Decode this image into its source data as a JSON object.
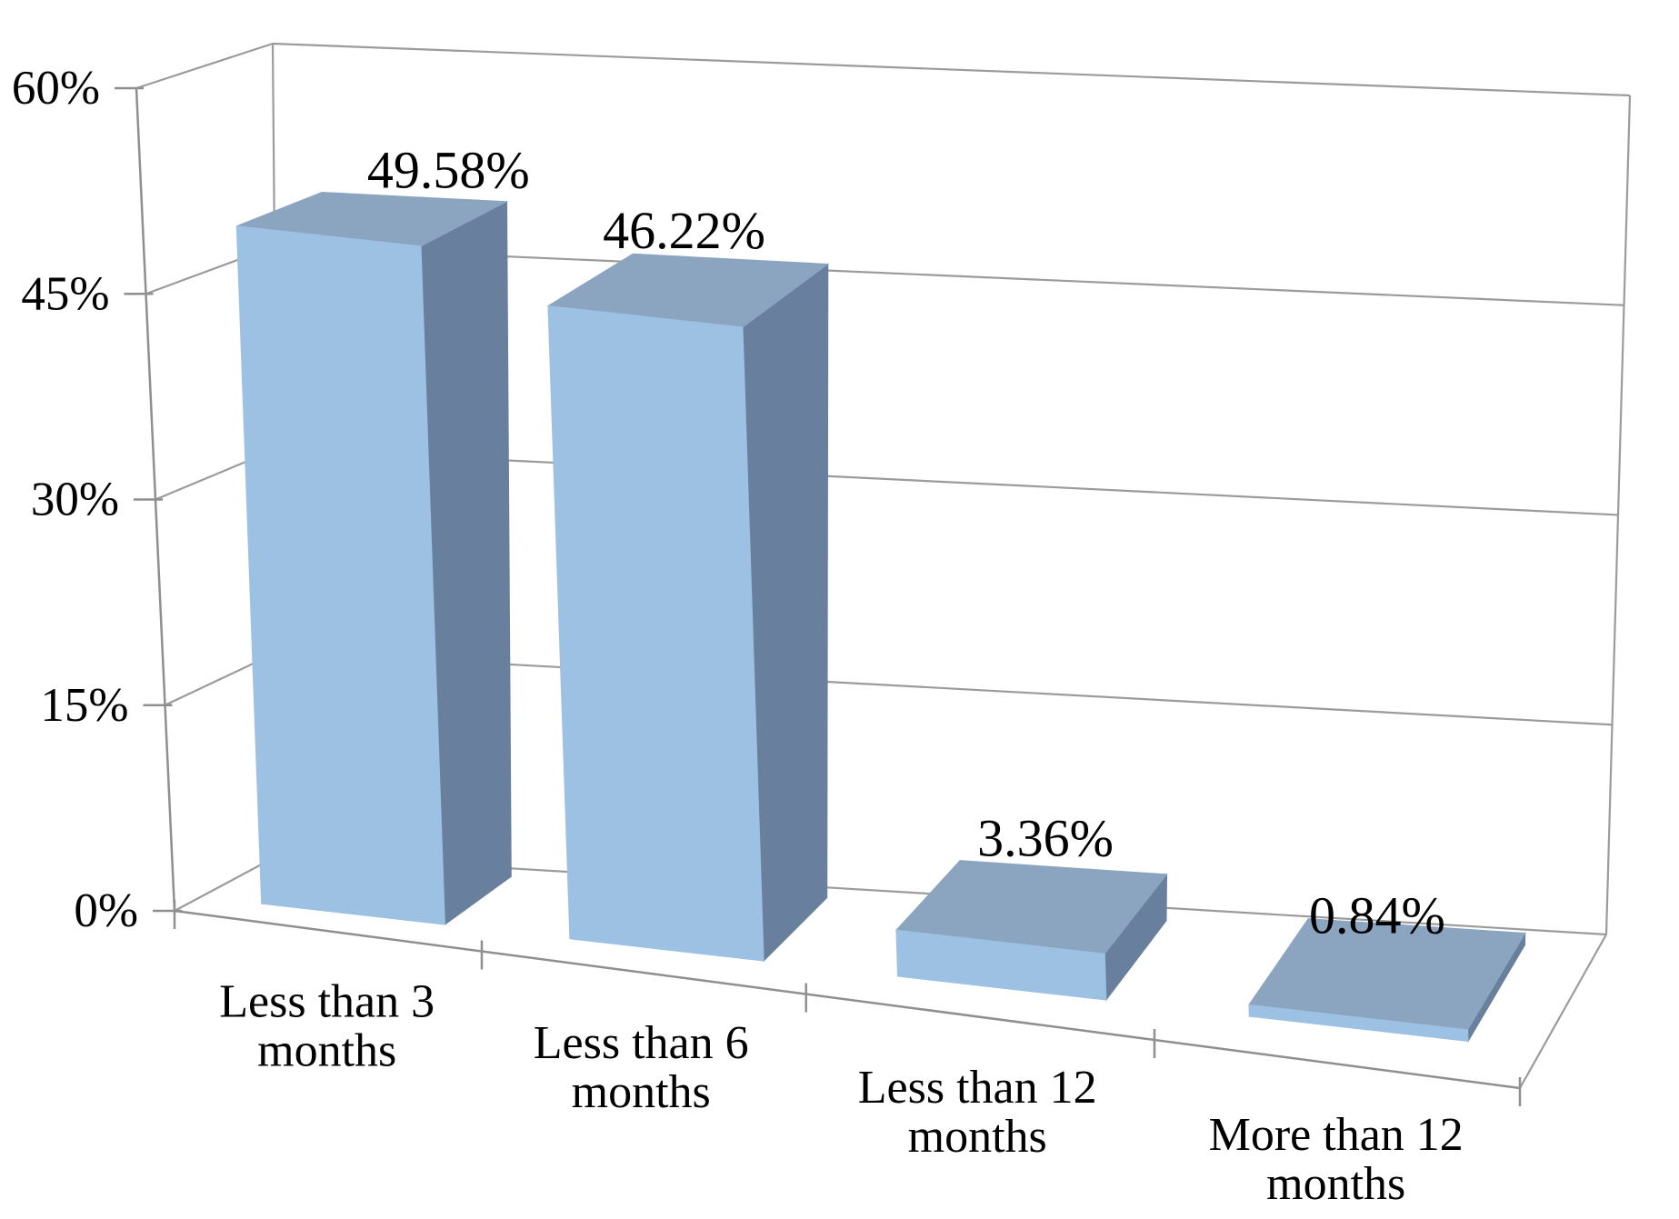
{
  "figure": {
    "background": "#ffffff"
  },
  "chart_data": {
    "type": "bar",
    "variant": "3d-column-perspective",
    "title": "",
    "xlabel": "",
    "ylabel": "",
    "legend": "none",
    "grid": true,
    "categories": [
      "Less than 3 months",
      "Less than 6 months",
      "Less than 12 months",
      "More than 12 months"
    ],
    "category_lines": [
      [
        "Less than 3",
        "months"
      ],
      [
        "Less than 6",
        "months"
      ],
      [
        "Less than 12",
        "months"
      ],
      [
        "More than 12",
        "months"
      ]
    ],
    "values": [
      49.58,
      46.22,
      3.36,
      0.84
    ],
    "data_labels": [
      "49.58%",
      "46.22%",
      "3.36%",
      "0.84%"
    ],
    "y_ticks": [
      {
        "label": "60%",
        "value": 60
      },
      {
        "label": "45%",
        "value": 45
      },
      {
        "label": "30%",
        "value": 30
      },
      {
        "label": "15%",
        "value": 15
      },
      {
        "label": "0%",
        "value": 0
      }
    ],
    "ylim": [
      0,
      60
    ],
    "colors": {
      "bar_front": "#9DC1E3",
      "bar_top": "#8BA4C0",
      "bar_side": "#68809E",
      "grid_line": "#9B9B9B",
      "axis_line": "#8F8F8F",
      "text": "#000000"
    }
  }
}
